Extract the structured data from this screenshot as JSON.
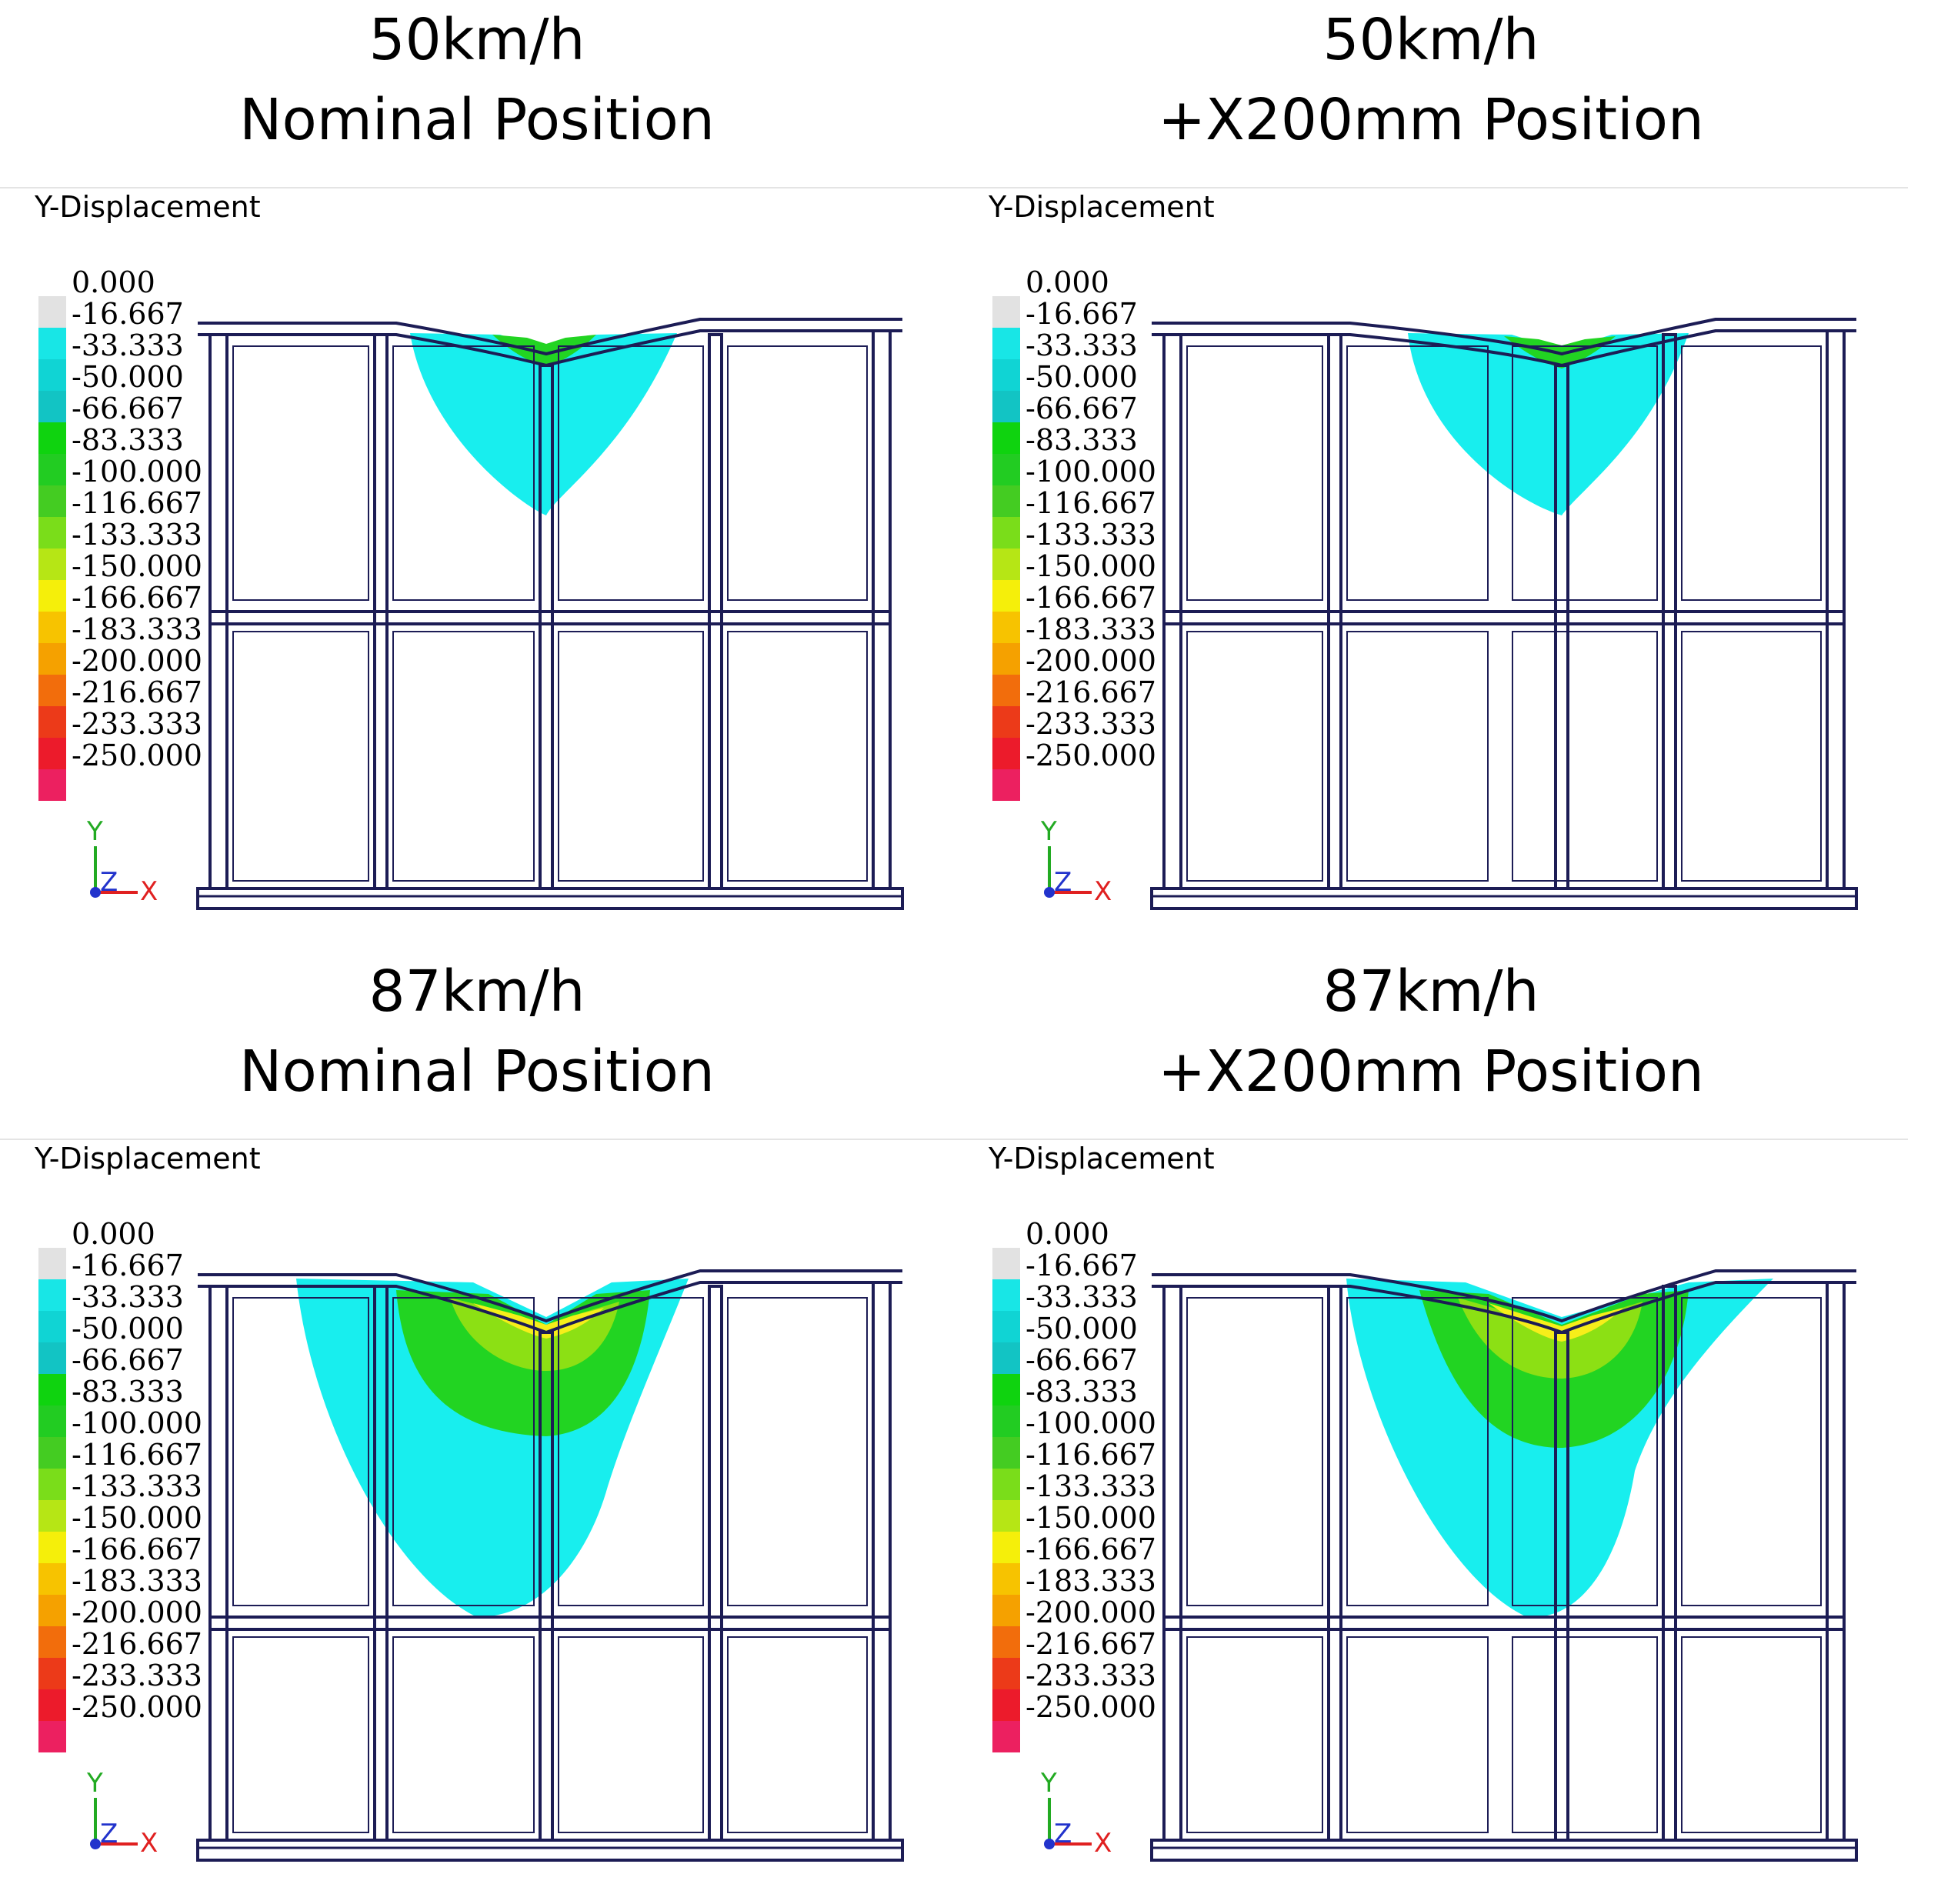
{
  "panels": [
    {
      "speed": "50km/h",
      "position": "Nominal Position",
      "plot_label": "Y-Displacement",
      "case": "p1"
    },
    {
      "speed": "50km/h",
      "position": "+X200mm Position",
      "plot_label": "Y-Displacement",
      "case": "p2"
    },
    {
      "speed": "87km/h",
      "position": "Nominal Position",
      "plot_label": "Y-Displacement",
      "case": "p3"
    },
    {
      "speed": "87km/h",
      "position": "+X200mm Position",
      "plot_label": "Y-Displacement",
      "case": "p4"
    }
  ],
  "legend": {
    "values": [
      "0.000",
      "-16.667",
      "-33.333",
      "-50.000",
      "-66.667",
      "-83.333",
      "-100.000",
      "-116.667",
      "-133.333",
      "-150.000",
      "-166.667",
      "-183.333",
      "-200.000",
      "-216.667",
      "-233.333",
      "-250.000"
    ],
    "colors": [
      "#e2e2e2",
      "#18e6e6",
      "#10d4d4",
      "#12c4c4",
      "#0fd30f",
      "#22cc22",
      "#44cc22",
      "#7add1a",
      "#b6e615",
      "#f5ef0a",
      "#f7c300",
      "#f5a100",
      "#f26d0c",
      "#ec3a19",
      "#ec1b2b",
      "#ec2060"
    ]
  },
  "triad": {
    "x": "X",
    "y": "Y",
    "z": "Z"
  },
  "colors": {
    "frame": "#1c1c55",
    "cyan": "#18eeee",
    "green": "#22d422",
    "yellow": "#f6ee1a"
  }
}
